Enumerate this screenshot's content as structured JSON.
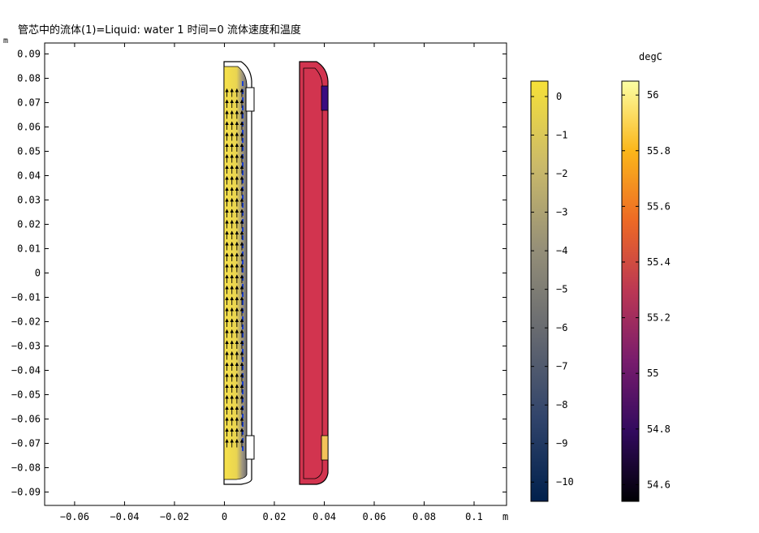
{
  "chart_data": [
    {
      "type": "heatmap",
      "title": "管芯中的流体(1)=Liquid: water 1 时间=0 流体速度和温度",
      "xlabel": "m",
      "ylabel": "m",
      "x_ticks": [
        -0.06,
        -0.04,
        -0.02,
        0,
        0.02,
        0.04,
        0.06,
        0.08,
        0.1
      ],
      "y_ticks": [
        0.09,
        0.08,
        0.07,
        0.06,
        0.05,
        0.04,
        0.03,
        0.02,
        0.01,
        0,
        -0.01,
        -0.02,
        -0.03,
        -0.04,
        -0.05,
        -0.06,
        -0.07,
        -0.08,
        -0.09
      ],
      "x_tick_labels": [
        "−0.06",
        "−0.04",
        "−0.02",
        "0",
        "0.02",
        "0.04",
        "0.06",
        "0.08",
        "0.1"
      ],
      "y_tick_labels": [
        "0.09",
        "0.08",
        "0.07",
        "0.06",
        "0.05",
        "0.04",
        "0.03",
        "0.02",
        "0.01",
        "0",
        "−0.01",
        "−0.02",
        "−0.03",
        "−0.04",
        "−0.05",
        "−0.06",
        "−0.07",
        "−0.08",
        "−0.09"
      ],
      "xlim": [
        -0.072,
        0.113
      ],
      "ylim": [
        -0.0955,
        0.0945
      ],
      "grid": false,
      "regions": [
        {
          "field": "velocity",
          "x_range": [
            0,
            0.0125
          ],
          "y_range": [
            -0.085,
            0.085
          ]
        },
        {
          "field": "temperature",
          "x_range": [
            0.03,
            0.0415
          ],
          "y_range": [
            -0.085,
            0.085
          ]
        }
      ],
      "vector_arrows": {
        "x_columns": [
          0.001,
          0.003,
          0.005,
          0.007
        ],
        "y_range": [
          -0.07,
          0.075
        ],
        "step": 0.0045,
        "direction": "up"
      },
      "colorbars": [
        {
          "field": "velocity",
          "unit": "",
          "range": [
            -10.5,
            0.4
          ],
          "ticks": [
            0,
            -1,
            -2,
            -3,
            -4,
            -5,
            -6,
            -7,
            -8,
            -9,
            -10
          ],
          "tick_labels": [
            "0",
            "−1",
            "−2",
            "−3",
            "−4",
            "−5",
            "−6",
            "−7",
            "−8",
            "−9",
            "−10"
          ],
          "colors": [
            "#00204c",
            "#31446b",
            "#666970",
            "#958f78",
            "#cbba69",
            "#f6e138"
          ]
        },
        {
          "field": "temperature",
          "unit": "degC",
          "range": [
            54.54,
            56.05
          ],
          "ticks": [
            56,
            55.8,
            55.6,
            55.4,
            55.2,
            55,
            54.8,
            54.6
          ],
          "tick_labels": [
            "56",
            "55.8",
            "55.6",
            "55.4",
            "55.2",
            "55",
            "54.8",
            "54.6"
          ],
          "colors": [
            "#000004",
            "#320a5e",
            "#781c6d",
            "#bb3754",
            "#ed6925",
            "#fbb61a",
            "#fcffa4"
          ]
        }
      ]
    }
  ]
}
